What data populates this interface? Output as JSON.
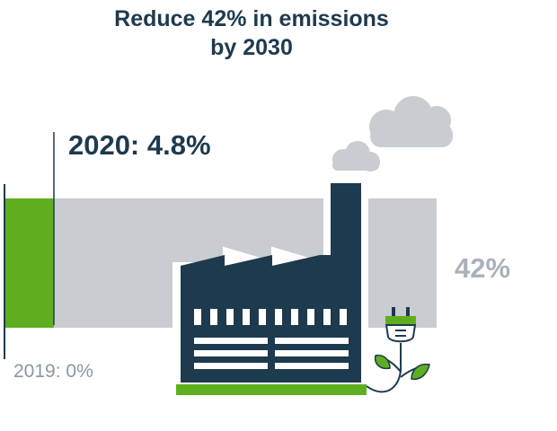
{
  "chart_data": {
    "type": "bar",
    "title_line1": "Reduce 42% in emissions",
    "title_line2": "by 2030",
    "xlim": [
      0,
      42
    ],
    "baseline": {
      "label": "2019: 0%",
      "value": 0
    },
    "progress": {
      "label": "2020: 4.8%",
      "value": 4.8
    },
    "target": {
      "label": "42%",
      "value": 42
    }
  },
  "colors": {
    "navy": "#1d3a4f",
    "green": "#5fae1f",
    "bar_gray": "#c9ccd0",
    "cloud_gray": "#c9ccd0",
    "text_gray": "#8a97a3",
    "target_text": "#a9b1b9"
  },
  "icons": [
    "factory-icon",
    "smoke-cloud-icon",
    "plug-icon",
    "leaf-icon"
  ]
}
